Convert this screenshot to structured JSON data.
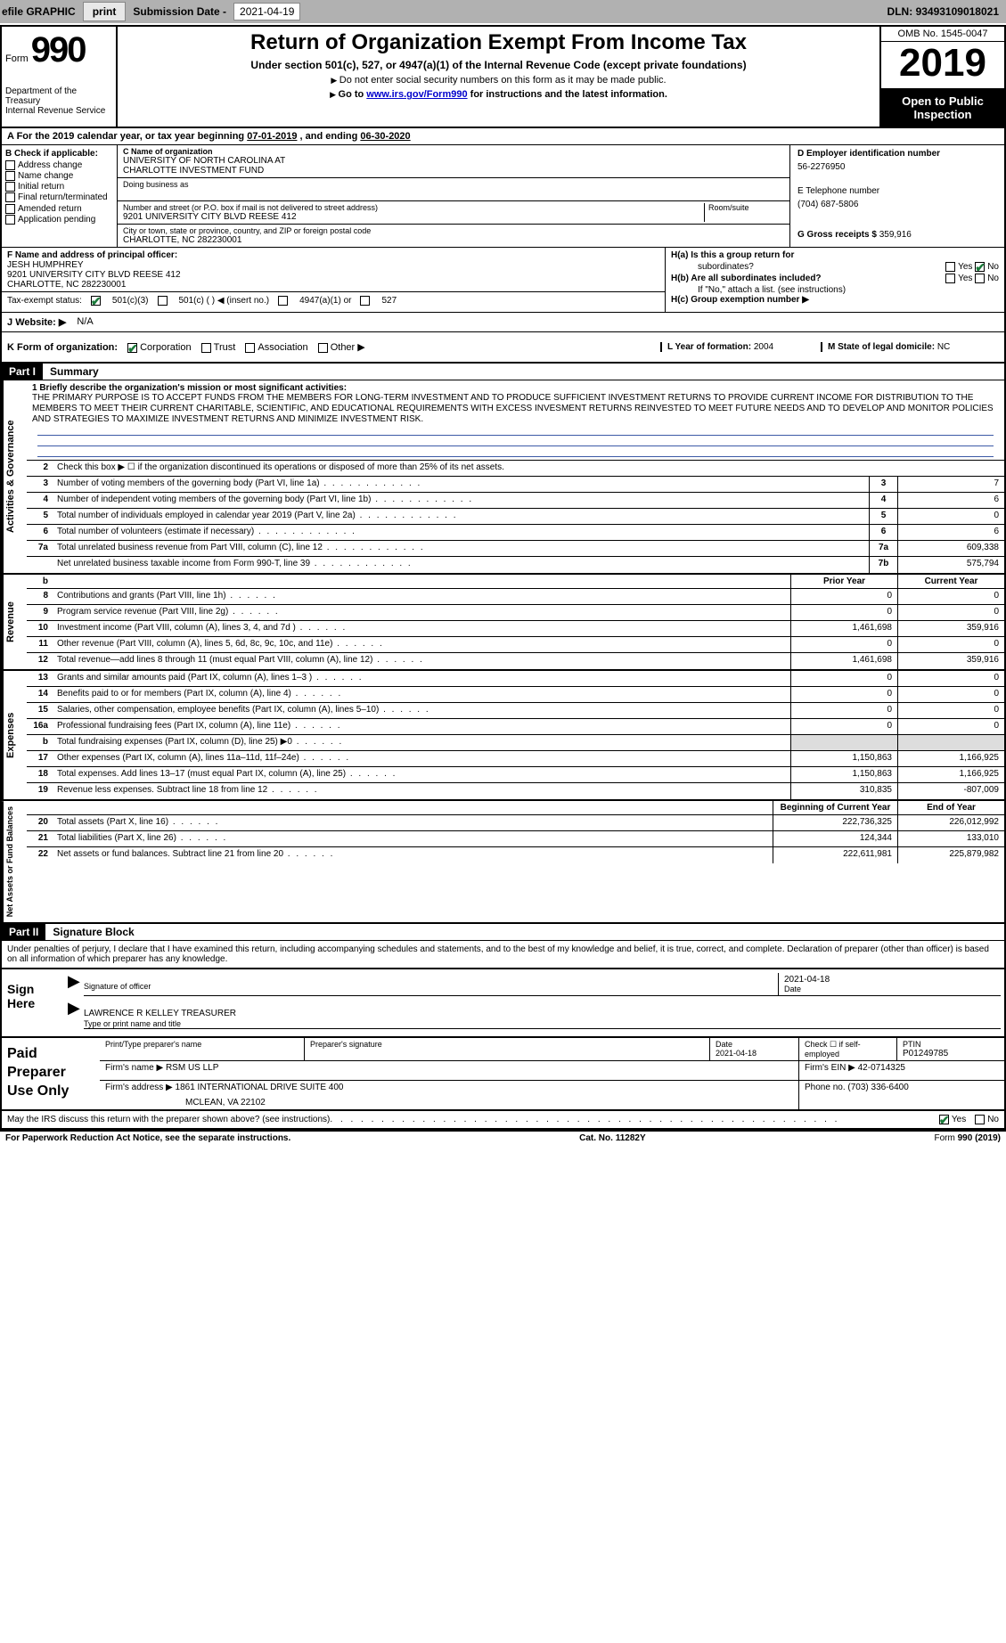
{
  "topbar": {
    "efile": "efile GRAPHIC",
    "print": "print",
    "sub_label": "Submission Date -",
    "sub_date": "2021-04-19",
    "dln_label": "DLN:",
    "dln": "93493109018021"
  },
  "header": {
    "form_word": "Form",
    "form_num": "990",
    "dept": "Department of the Treasury\nInternal Revenue Service",
    "title": "Return of Organization Exempt From Income Tax",
    "subtitle": "Under section 501(c), 527, or 4947(a)(1) of the Internal Revenue Code (except private foundations)",
    "note1": "Do not enter social security numbers on this form as it may be made public.",
    "note2_pre": "Go to ",
    "note2_link": "www.irs.gov/Form990",
    "note2_post": " for instructions and the latest information.",
    "omb": "OMB No. 1545-0047",
    "year": "2019",
    "open": "Open to Public Inspection"
  },
  "period": {
    "prefix": "A For the 2019 calendar year, or tax year beginning ",
    "begin": "07-01-2019",
    "mid": " , and ending ",
    "end": "06-30-2020"
  },
  "boxB": {
    "label": "B Check if applicable:",
    "items": [
      "Address change",
      "Name change",
      "Initial return",
      "Final return/terminated",
      "Amended return",
      "Application pending"
    ]
  },
  "boxC": {
    "name_label": "C Name of organization",
    "name1": "UNIVERSITY OF NORTH CAROLINA AT",
    "name2": "CHARLOTTE INVESTMENT FUND",
    "dba_label": "Doing business as",
    "addr_label": "Number and street (or P.O. box if mail is not delivered to street address)",
    "room_label": "Room/suite",
    "addr": "9201 UNIVERSITY CITY BLVD REESE 412",
    "city_label": "City or town, state or province, country, and ZIP or foreign postal code",
    "city": "CHARLOTTE, NC  282230001"
  },
  "boxD": {
    "d_label": "D Employer identification number",
    "ein": "56-2276950",
    "e_label": "E Telephone number",
    "phone": "(704) 687-5806",
    "g_label": "G Gross receipts $",
    "gross": "359,916"
  },
  "boxF": {
    "label": "F Name and address of principal officer:",
    "name": "JESH HUMPHREY",
    "addr1": "9201 UNIVERSITY CITY BLVD REESE 412",
    "addr2": "CHARLOTTE, NC  282230001"
  },
  "boxH": {
    "ha": "H(a)  Is this a group return for",
    "ha2": "subordinates?",
    "hb": "H(b)  Are all subordinates included?",
    "hb_note": "If \"No,\" attach a list. (see instructions)",
    "hc": "H(c)  Group exemption number ▶",
    "yes": "Yes",
    "no": "No"
  },
  "boxI": {
    "label": "Tax-exempt status:",
    "opt1": "501(c)(3)",
    "opt2": "501(c) (  ) ◀ (insert no.)",
    "opt3": "4947(a)(1) or",
    "opt4": "527"
  },
  "boxJ": {
    "label": "Website: ▶",
    "value": "N/A"
  },
  "boxK": {
    "label": "K Form of organization:",
    "opts": [
      "Corporation",
      "Trust",
      "Association",
      "Other ▶"
    ]
  },
  "boxL": {
    "label": "L Year of formation:",
    "value": "2004"
  },
  "boxM": {
    "label": "M State of legal domicile:",
    "value": "NC"
  },
  "partI": {
    "tag": "Part I",
    "title": "Summary",
    "line1_label": "1 Briefly describe the organization's mission or most significant activities:",
    "mission": "THE PRIMARY PURPOSE IS TO ACCEPT FUNDS FROM THE MEMBERS FOR LONG-TERM INVESTMENT AND TO PRODUCE SUFFICIENT INVESTMENT RETURNS TO PROVIDE CURRENT INCOME FOR DISTRIBUTION TO THE MEMBERS TO MEET THEIR CURRENT CHARITABLE, SCIENTIFIC, AND EDUCATIONAL REQUIREMENTS WITH EXCESS INVESMENT RETURNS REINVESTED TO MEET FUTURE NEEDS AND TO DEVELOP AND MONITOR POLICIES AND STRATEGIES TO MAXIMIZE INVESTMENT RETURNS AND MINIMIZE INVESTMENT RISK.",
    "line2": "Check this box ▶ ☐  if the organization discontinued its operations or disposed of more than 25% of its net assets.",
    "sides": {
      "gov": "Activities & Governance",
      "rev": "Revenue",
      "exp": "Expenses",
      "net": "Net Assets or Fund Balances"
    },
    "rows_gov": [
      {
        "n": "3",
        "d": "Number of voting members of the governing body (Part VI, line 1a)",
        "box": "3",
        "v": "7"
      },
      {
        "n": "4",
        "d": "Number of independent voting members of the governing body (Part VI, line 1b)",
        "box": "4",
        "v": "6"
      },
      {
        "n": "5",
        "d": "Total number of individuals employed in calendar year 2019 (Part V, line 2a)",
        "box": "5",
        "v": "0"
      },
      {
        "n": "6",
        "d": "Total number of volunteers (estimate if necessary)",
        "box": "6",
        "v": "6"
      },
      {
        "n": "7a",
        "d": "Total unrelated business revenue from Part VIII, column (C), line 12",
        "box": "7a",
        "v": "609,338"
      },
      {
        "n": "",
        "d": "Net unrelated business taxable income from Form 990-T, line 39",
        "box": "7b",
        "v": "575,794"
      }
    ],
    "hdr_prior": "Prior Year",
    "hdr_current": "Current Year",
    "rows_rev": [
      {
        "n": "8",
        "d": "Contributions and grants (Part VIII, line 1h)",
        "p": "0",
        "c": "0"
      },
      {
        "n": "9",
        "d": "Program service revenue (Part VIII, line 2g)",
        "p": "0",
        "c": "0"
      },
      {
        "n": "10",
        "d": "Investment income (Part VIII, column (A), lines 3, 4, and 7d )",
        "p": "1,461,698",
        "c": "359,916"
      },
      {
        "n": "11",
        "d": "Other revenue (Part VIII, column (A), lines 5, 6d, 8c, 9c, 10c, and 11e)",
        "p": "0",
        "c": "0"
      },
      {
        "n": "12",
        "d": "Total revenue—add lines 8 through 11 (must equal Part VIII, column (A), line 12)",
        "p": "1,461,698",
        "c": "359,916"
      }
    ],
    "rows_exp": [
      {
        "n": "13",
        "d": "Grants and similar amounts paid (Part IX, column (A), lines 1–3 )",
        "p": "0",
        "c": "0"
      },
      {
        "n": "14",
        "d": "Benefits paid to or for members (Part IX, column (A), line 4)",
        "p": "0",
        "c": "0"
      },
      {
        "n": "15",
        "d": "Salaries, other compensation, employee benefits (Part IX, column (A), lines 5–10)",
        "p": "0",
        "c": "0"
      },
      {
        "n": "16a",
        "d": "Professional fundraising fees (Part IX, column (A), line 11e)",
        "p": "0",
        "c": "0"
      },
      {
        "n": "b",
        "d": "Total fundraising expenses (Part IX, column (D), line 25) ▶0",
        "p": "",
        "c": "",
        "shade": true
      },
      {
        "n": "17",
        "d": "Other expenses (Part IX, column (A), lines 11a–11d, 11f–24e)",
        "p": "1,150,863",
        "c": "1,166,925"
      },
      {
        "n": "18",
        "d": "Total expenses. Add lines 13–17 (must equal Part IX, column (A), line 25)",
        "p": "1,150,863",
        "c": "1,166,925"
      },
      {
        "n": "19",
        "d": "Revenue less expenses. Subtract line 18 from line 12",
        "p": "310,835",
        "c": "-807,009"
      }
    ],
    "hdr_begin": "Beginning of Current Year",
    "hdr_end": "End of Year",
    "rows_net": [
      {
        "n": "20",
        "d": "Total assets (Part X, line 16)",
        "p": "222,736,325",
        "c": "226,012,992"
      },
      {
        "n": "21",
        "d": "Total liabilities (Part X, line 26)",
        "p": "124,344",
        "c": "133,010"
      },
      {
        "n": "22",
        "d": "Net assets or fund balances. Subtract line 21 from line 20",
        "p": "222,611,981",
        "c": "225,879,982"
      }
    ]
  },
  "partII": {
    "tag": "Part II",
    "title": "Signature Block",
    "penalty": "Under penalties of perjury, I declare that I have examined this return, including accompanying schedules and statements, and to the best of my knowledge and belief, it is true, correct, and complete. Declaration of preparer (other than officer) is based on all information of which preparer has any knowledge.",
    "sign_here": "Sign Here",
    "sig_officer": "Signature of officer",
    "sig_date": "2021-04-18",
    "date_label": "Date",
    "name_title": "LAWRENCE R KELLEY TREASURER",
    "type_label": "Type or print name and title",
    "paid": "Paid Preparer Use Only",
    "p_name_label": "Print/Type preparer's name",
    "p_sig_label": "Preparer's signature",
    "p_date_label": "Date",
    "p_date": "2021-04-18",
    "p_check": "Check ☐ if self-employed",
    "ptin_label": "PTIN",
    "ptin": "P01249785",
    "firm_name_label": "Firm's name    ▶",
    "firm_name": "RSM US LLP",
    "firm_ein_label": "Firm's EIN ▶",
    "firm_ein": "42-0714325",
    "firm_addr_label": "Firm's address ▶",
    "firm_addr1": "1861 INTERNATIONAL DRIVE SUITE 400",
    "firm_addr2": "MCLEAN, VA  22102",
    "phone_label": "Phone no.",
    "phone": "(703) 336-6400",
    "discuss": "May the IRS discuss this return with the preparer shown above? (see instructions)",
    "yes": "Yes",
    "no": "No",
    "paperwork": "For Paperwork Reduction Act Notice, see the separate instructions.",
    "cat": "Cat. No. 11282Y",
    "form_foot": "Form 990 (2019)"
  }
}
